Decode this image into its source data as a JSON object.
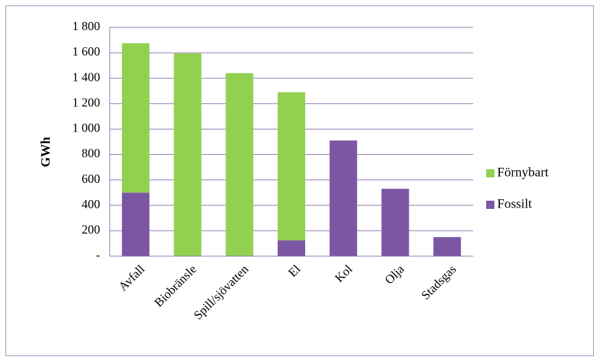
{
  "chart_data": {
    "type": "bar",
    "stacked": true,
    "title": "",
    "xlabel": "",
    "ylabel": "GWh",
    "ylim": [
      0,
      1800
    ],
    "yticks": [
      0,
      200,
      400,
      600,
      800,
      1000,
      1200,
      1400,
      1600,
      1800
    ],
    "ytick_labels": [
      "-",
      "200",
      "400",
      "600",
      "800",
      "1 000",
      "1 200",
      "1 400",
      "1 600",
      "1 800"
    ],
    "grid": true,
    "legend_position": "right",
    "categories": [
      "Avfall",
      "Biobränsle",
      "Spill/sjövatten",
      "El",
      "Kol",
      "Olja",
      "Stadsgas"
    ],
    "series": [
      {
        "name": "Fossilt",
        "color": "#7b57a3",
        "values": [
          500,
          0,
          0,
          125,
          910,
          530,
          150
        ]
      },
      {
        "name": "Förnybart",
        "color": "#92d050",
        "values": [
          1175,
          1595,
          1440,
          1165,
          0,
          0,
          0
        ]
      }
    ],
    "legend_order": [
      "Förnybart",
      "Fossilt"
    ]
  }
}
